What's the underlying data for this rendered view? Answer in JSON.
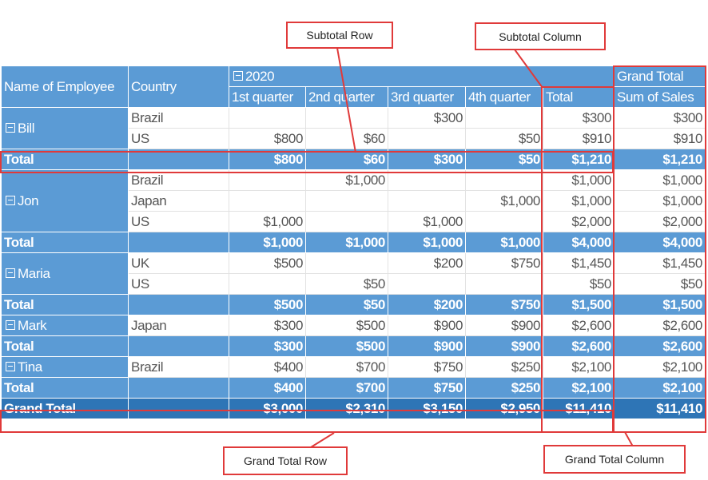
{
  "headers": {
    "employee": "Name of Employee",
    "country": "Country",
    "year": "2020",
    "quarters": [
      "1st quarter",
      "2nd quarter",
      "3rd quarter",
      "4th quarter"
    ],
    "total": "Total",
    "grand_total": "Grand Total",
    "sum_of_sales": "Sum of Sales"
  },
  "employees": [
    {
      "name": "Bill",
      "rows": [
        {
          "country": "Brazil",
          "q": [
            "",
            "",
            "$300",
            ""
          ],
          "total": "$300",
          "grand": "$300"
        },
        {
          "country": "US",
          "q": [
            "$800",
            "$60",
            "",
            "$50"
          ],
          "total": "$910",
          "grand": "$910"
        }
      ],
      "subtotal": {
        "label": "Total",
        "q": [
          "$800",
          "$60",
          "$300",
          "$50"
        ],
        "total": "$1,210",
        "grand": "$1,210"
      }
    },
    {
      "name": "Jon",
      "rows": [
        {
          "country": "Brazil",
          "q": [
            "",
            "$1,000",
            "",
            ""
          ],
          "total": "$1,000",
          "grand": "$1,000"
        },
        {
          "country": "Japan",
          "q": [
            "",
            "",
            "",
            "$1,000"
          ],
          "total": "$1,000",
          "grand": "$1,000"
        },
        {
          "country": "US",
          "q": [
            "$1,000",
            "",
            "$1,000",
            ""
          ],
          "total": "$2,000",
          "grand": "$2,000"
        }
      ],
      "subtotal": {
        "label": "Total",
        "q": [
          "$1,000",
          "$1,000",
          "$1,000",
          "$1,000"
        ],
        "total": "$4,000",
        "grand": "$4,000"
      }
    },
    {
      "name": "Maria",
      "rows": [
        {
          "country": "UK",
          "q": [
            "$500",
            "",
            "$200",
            "$750"
          ],
          "total": "$1,450",
          "grand": "$1,450"
        },
        {
          "country": "US",
          "q": [
            "",
            "$50",
            "",
            ""
          ],
          "total": "$50",
          "grand": "$50"
        }
      ],
      "subtotal": {
        "label": "Total",
        "q": [
          "$500",
          "$50",
          "$200",
          "$750"
        ],
        "total": "$1,500",
        "grand": "$1,500"
      }
    },
    {
      "name": "Mark",
      "rows": [
        {
          "country": "Japan",
          "q": [
            "$300",
            "$500",
            "$900",
            "$900"
          ],
          "total": "$2,600",
          "grand": "$2,600"
        }
      ],
      "subtotal": {
        "label": "Total",
        "q": [
          "$300",
          "$500",
          "$900",
          "$900"
        ],
        "total": "$2,600",
        "grand": "$2,600"
      }
    },
    {
      "name": "Tina",
      "rows": [
        {
          "country": "Brazil",
          "q": [
            "$400",
            "$700",
            "$750",
            "$250"
          ],
          "total": "$2,100",
          "grand": "$2,100"
        }
      ],
      "subtotal": {
        "label": "Total",
        "q": [
          "$400",
          "$700",
          "$750",
          "$250"
        ],
        "total": "$2,100",
        "grand": "$2,100"
      }
    }
  ],
  "grand_total_row": {
    "label": "Grand Total",
    "q": [
      "$3,000",
      "$2,310",
      "$3,150",
      "$2,950"
    ],
    "total": "$11,410",
    "grand": "$11,410"
  },
  "callouts": {
    "subtotal_row": "Subtotal Row",
    "subtotal_column": "Subtotal Column",
    "grand_total_row": "Grand Total Row",
    "grand_total_column": "Grand Total Column"
  },
  "icons": {
    "collapse": "collapse-toggle-icon"
  },
  "colors": {
    "header": "#5b9bd5",
    "grand_row": "#2e75b6",
    "annotation": "#e03a3a"
  }
}
